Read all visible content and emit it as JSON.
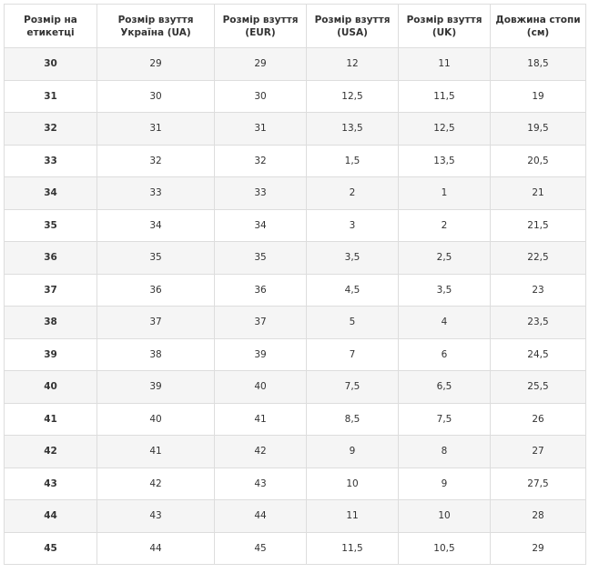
{
  "table": {
    "header": [
      "Розмір на етикетці",
      "Розмір взуття Україна (UA)",
      "Розмір взуття (EUR)",
      "Розмір взуття (USA)",
      "Розмір взуття (UK)",
      "Довжина стопи (см)"
    ],
    "rows": [
      [
        "30",
        "29",
        "29",
        "12",
        "11",
        "18,5"
      ],
      [
        "31",
        "30",
        "30",
        "12,5",
        "11,5",
        "19"
      ],
      [
        "32",
        "31",
        "31",
        "13,5",
        "12,5",
        "19,5"
      ],
      [
        "33",
        "32",
        "32",
        "1,5",
        "13,5",
        "20,5"
      ],
      [
        "34",
        "33",
        "33",
        "2",
        "1",
        "21"
      ],
      [
        "35",
        "34",
        "34",
        "3",
        "2",
        "21,5"
      ],
      [
        "36",
        "35",
        "35",
        "3,5",
        "2,5",
        "22,5"
      ],
      [
        "37",
        "36",
        "36",
        "4,5",
        "3,5",
        "23"
      ],
      [
        "38",
        "37",
        "37",
        "5",
        "4",
        "23,5"
      ],
      [
        "39",
        "38",
        "39",
        "7",
        "6",
        "24,5"
      ],
      [
        "40",
        "39",
        "40",
        "7,5",
        "6,5",
        "25,5"
      ],
      [
        "41",
        "40",
        "41",
        "8,5",
        "7,5",
        "26"
      ],
      [
        "42",
        "41",
        "42",
        "9",
        "8",
        "27"
      ],
      [
        "43",
        "42",
        "43",
        "10",
        "9",
        "27,5"
      ],
      [
        "44",
        "43",
        "44",
        "11",
        "10",
        "28"
      ],
      [
        "45",
        "44",
        "45",
        "11,5",
        "10,5",
        "29"
      ]
    ]
  }
}
